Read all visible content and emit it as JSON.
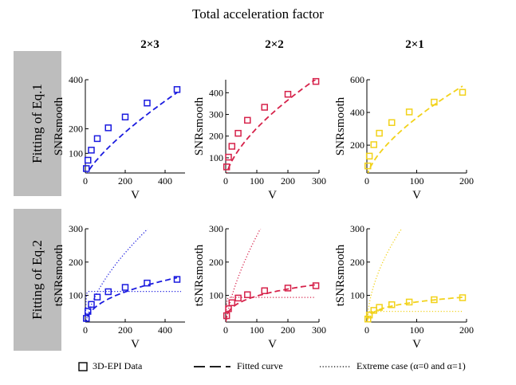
{
  "figure": {
    "title": "Total acceleration factor",
    "columns": [
      "2×3",
      "2×2",
      "2×1"
    ],
    "rows": [
      "Fitting of Eq.1",
      "Fitting of Eq.2"
    ],
    "legend": {
      "data": "3D-EPI Data",
      "fit": "Fitted curve",
      "extreme": "Extreme case  (α=0 and α=1)"
    },
    "colors": {
      "blue": "#1a1adf",
      "red": "#d6224a",
      "yellow": "#f2d21a"
    }
  },
  "chart_data": [
    {
      "type": "scatter",
      "panel": "eq1-2x3",
      "row": 0,
      "col": 0,
      "color": "blue",
      "xlabel": "V",
      "ylabel": "SNRsmooth",
      "xlim": [
        0,
        500
      ],
      "ylim": [
        20,
        400
      ],
      "xticks": [
        0,
        200,
        400
      ],
      "yticks": [
        100,
        200,
        400
      ],
      "points": {
        "x": [
          5,
          13,
          30,
          60,
          115,
          200,
          310,
          460
        ],
        "y": [
          38,
          72,
          113,
          160,
          204,
          248,
          305,
          360
        ]
      },
      "fit": {
        "a": 3.5,
        "p": 0.75
      }
    },
    {
      "type": "scatter",
      "panel": "eq1-2x2",
      "row": 0,
      "col": 1,
      "color": "red",
      "xlabel": "V",
      "ylabel": "SNRsmooth",
      "xlim": [
        0,
        300
      ],
      "ylim": [
        30,
        460
      ],
      "xticks": [
        0,
        100,
        200,
        300
      ],
      "yticks": [
        100,
        200,
        300,
        400
      ],
      "points": {
        "x": [
          3,
          9,
          20,
          40,
          70,
          125,
          200,
          290
        ],
        "y": [
          58,
          103,
          153,
          213,
          273,
          333,
          393,
          452
        ]
      },
      "fit": {
        "a": 13.0,
        "p": 0.63
      }
    },
    {
      "type": "scatter",
      "panel": "eq1-2x1",
      "row": 0,
      "col": 2,
      "color": "yellow",
      "xlabel": "V",
      "ylabel": "SNRsmooth",
      "xlim": [
        0,
        200
      ],
      "ylim": [
        30,
        600
      ],
      "xticks": [
        0,
        100,
        200
      ],
      "yticks": [
        0,
        200,
        400,
        600
      ],
      "points": {
        "x": [
          2,
          5,
          14,
          25,
          50,
          85,
          135,
          192
        ],
        "y": [
          73,
          133,
          203,
          273,
          338,
          403,
          463,
          523
        ]
      },
      "fit": {
        "a": 18.4,
        "p": 0.65
      }
    },
    {
      "type": "scatter",
      "panel": "eq2-2x3",
      "row": 1,
      "col": 0,
      "color": "blue",
      "xlabel": "V",
      "ylabel": "tSNRsmooth",
      "xlim": [
        0,
        500
      ],
      "ylim": [
        20,
        300
      ],
      "xticks": [
        0,
        200,
        400
      ],
      "yticks": [
        100,
        200,
        300
      ],
      "points": {
        "x": [
          5,
          13,
          30,
          60,
          115,
          200,
          310,
          460
        ],
        "y": [
          31,
          52,
          73,
          95,
          111,
          124,
          137,
          148
        ]
      },
      "fit": {
        "a": 14.0,
        "p": 0.39
      },
      "extreme_upper": {
        "a": 9.0,
        "p": 0.61,
        "xmax": 312
      },
      "extreme_lower": {
        "max": 112,
        "k": 0.38
      }
    },
    {
      "type": "scatter",
      "panel": "eq2-2x2",
      "row": 1,
      "col": 1,
      "color": "red",
      "xlabel": "V",
      "ylabel": "tSNRsmooth",
      "xlim": [
        0,
        300
      ],
      "ylim": [
        20,
        300
      ],
      "xticks": [
        0,
        100,
        200,
        300
      ],
      "yticks": [
        100,
        200,
        300
      ],
      "points": {
        "x": [
          3,
          9,
          20,
          40,
          70,
          125,
          200,
          290
        ],
        "y": [
          39,
          60,
          78,
          92,
          102,
          114,
          122,
          129
        ]
      },
      "fit": {
        "a": 27.0,
        "p": 0.28
      },
      "extreme_upper": {
        "a": 14.0,
        "p": 0.65,
        "xmax": 125
      },
      "extreme_lower": {
        "max": 94,
        "k": 0.5
      }
    },
    {
      "type": "scatter",
      "panel": "eq2-2x1",
      "row": 1,
      "col": 2,
      "color": "yellow",
      "xlabel": "V",
      "ylabel": "tSNRsmooth",
      "xlim": [
        0,
        200
      ],
      "ylim": [
        20,
        300
      ],
      "xticks": [
        0,
        100,
        200
      ],
      "yticks": [
        100,
        200,
        300
      ],
      "points": {
        "x": [
          2,
          5,
          14,
          25,
          50,
          85,
          135,
          192
        ],
        "y": [
          29,
          41,
          55,
          64,
          72,
          80,
          87,
          93
        ]
      },
      "fit": {
        "a": 26.0,
        "p": 0.245
      },
      "extreme_upper": {
        "a": 33.0,
        "p": 0.52,
        "xmax": 80
      },
      "extreme_lower": {
        "max": 52,
        "k": 0.8
      }
    }
  ]
}
